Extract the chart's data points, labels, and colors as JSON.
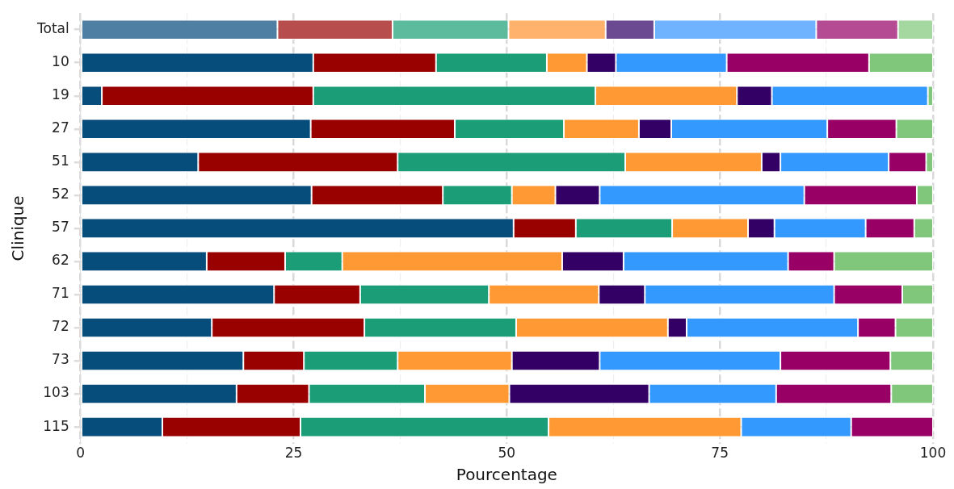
{
  "chart_data": {
    "type": "bar",
    "orientation": "horizontal",
    "stacked": true,
    "xlabel": "Pourcentage",
    "ylabel": "Clinique",
    "grid": true,
    "legend": false,
    "categories": [
      "Total",
      "10",
      "19",
      "27",
      "51",
      "52",
      "57",
      "62",
      "71",
      "72",
      "73",
      "103",
      "115"
    ],
    "xlim": [
      0,
      100
    ],
    "xticks": [
      0,
      {
        "value": 12.5,
        "label": null
      },
      25,
      {
        "value": 37.5,
        "label": null
      },
      50,
      {
        "value": 62.5,
        "label": null
      },
      75,
      {
        "value": 87.5,
        "label": null
      },
      100
    ],
    "series": [
      {
        "color": "#064d7c",
        "colors": [
          "#4f80a3",
          null,
          null,
          null,
          null,
          null,
          null,
          null,
          null,
          null,
          null,
          null,
          null
        ],
        "values": [
          23.1,
          27.3,
          2.5,
          27.0,
          13.8,
          27.1,
          50.8,
          14.8,
          22.7,
          15.4,
          19.1,
          18.3,
          9.6
        ]
      },
      {
        "color": "#990000",
        "colors": [
          "#b84d4d",
          null,
          null,
          null,
          null,
          null,
          null,
          null,
          null,
          null,
          null,
          null,
          null
        ],
        "values": [
          13.5,
          14.4,
          24.8,
          16.9,
          23.4,
          15.4,
          7.3,
          9.2,
          10.1,
          17.9,
          7.1,
          8.5,
          16.2
        ]
      },
      {
        "color": "#1b9e77",
        "colors": [
          "#5cbb9c",
          null,
          null,
          null,
          null,
          null,
          null,
          null,
          null,
          null,
          null,
          null,
          null
        ],
        "values": [
          13.6,
          13.0,
          33.1,
          12.8,
          26.7,
          8.1,
          11.3,
          6.7,
          15.1,
          17.8,
          11.0,
          13.6,
          29.1
        ]
      },
      {
        "color": "#ff9933",
        "colors": [
          "#ffb26b",
          null,
          null,
          null,
          null,
          null,
          null,
          null,
          null,
          null,
          null,
          null,
          null
        ],
        "values": [
          11.4,
          4.7,
          16.6,
          8.8,
          16.0,
          5.1,
          8.9,
          25.8,
          12.9,
          17.8,
          13.4,
          9.9,
          22.6
        ]
      },
      {
        "color": "#330066",
        "colors": [
          "#6b4a92",
          null,
          null,
          null,
          null,
          null,
          null,
          null,
          null,
          null,
          null,
          null,
          null
        ],
        "values": [
          5.7,
          3.4,
          4.1,
          3.8,
          2.2,
          5.2,
          3.1,
          7.2,
          5.4,
          2.2,
          10.3,
          16.4,
          0
        ]
      },
      {
        "color": "#3399ff",
        "colors": [
          "#6fb3ff",
          null,
          null,
          null,
          null,
          null,
          null,
          null,
          null,
          null,
          null,
          null,
          null
        ],
        "values": [
          19.0,
          13.0,
          18.3,
          18.3,
          12.7,
          24.0,
          10.7,
          19.3,
          22.2,
          20.1,
          21.2,
          14.9,
          12.9
        ]
      },
      {
        "color": "#990066",
        "colors": [
          "#b54c93",
          null,
          null,
          null,
          null,
          null,
          null,
          null,
          null,
          null,
          null,
          null,
          null
        ],
        "values": [
          9.6,
          16.7,
          0,
          8.1,
          4.4,
          13.2,
          5.7,
          5.4,
          8.0,
          4.4,
          12.9,
          13.5,
          9.6
        ]
      },
      {
        "color": "#80c77c",
        "colors": [
          "#a4d8a0",
          null,
          null,
          null,
          null,
          null,
          null,
          null,
          null,
          null,
          null,
          null,
          null
        ],
        "values": [
          4.1,
          7.5,
          0.6,
          4.3,
          0.8,
          1.9,
          2.2,
          11.6,
          3.6,
          4.4,
          5.0,
          4.9,
          0
        ]
      }
    ]
  }
}
